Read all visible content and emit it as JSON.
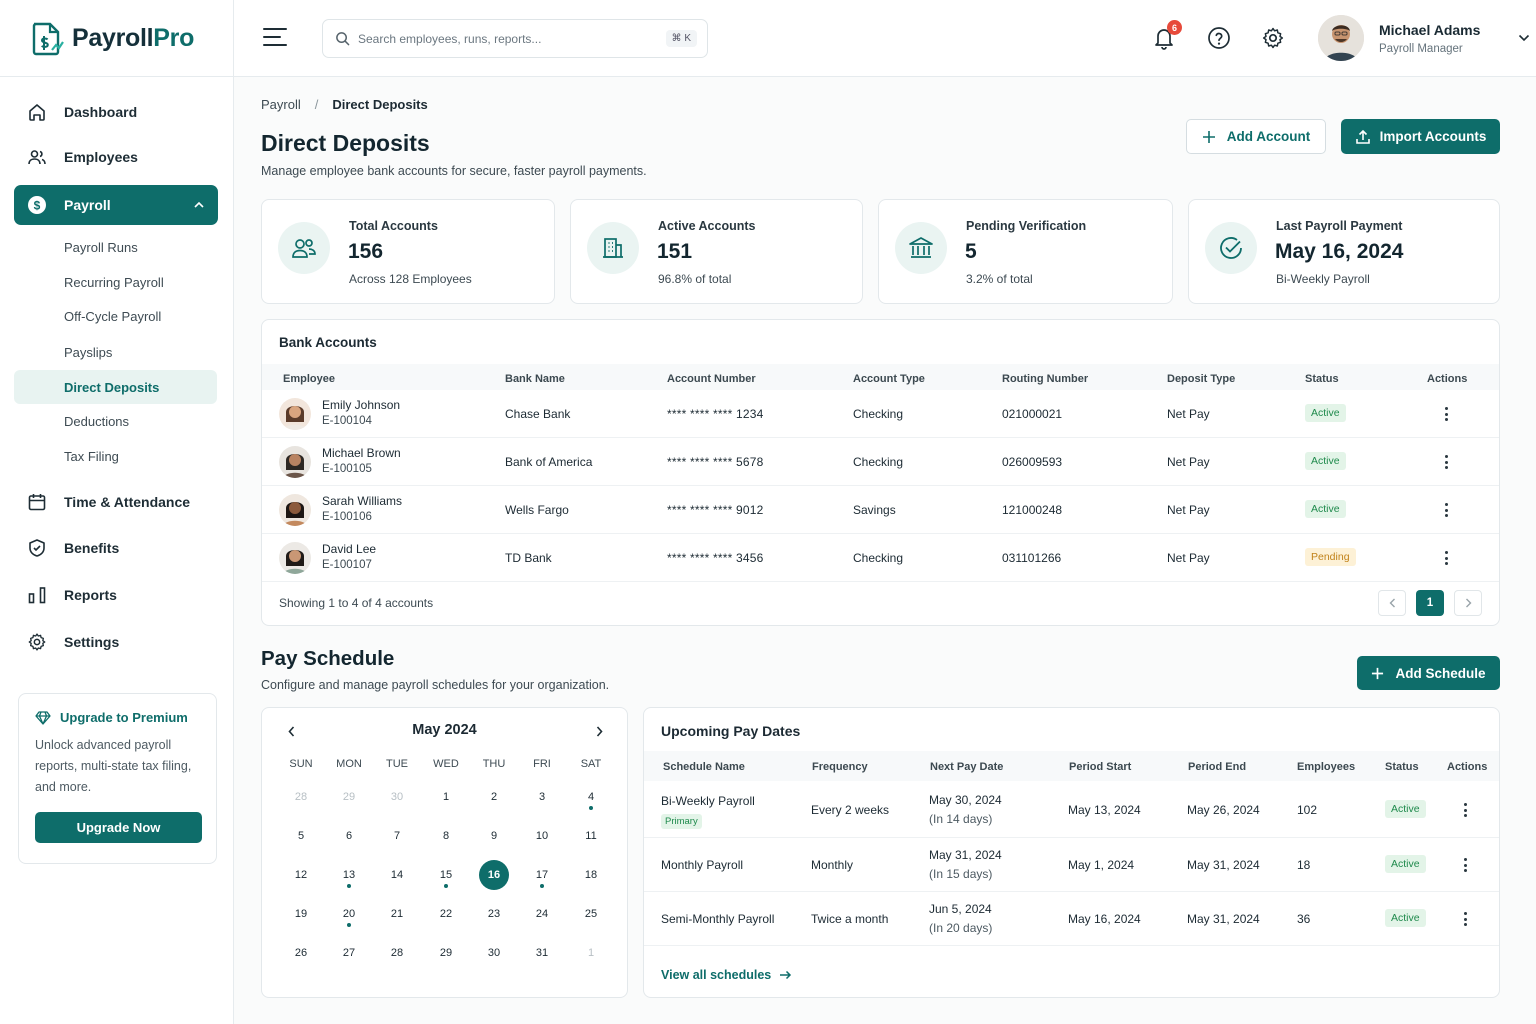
{
  "app": {
    "brand_main": "Payroll",
    "brand_accent": "Pro"
  },
  "search": {
    "placeholder": "Search employees, runs, reports...",
    "shortcut": "⌘ K"
  },
  "notifications": {
    "count": "6"
  },
  "user": {
    "name": "Michael Adams",
    "role": "Payroll Manager"
  },
  "sidebar": {
    "items": [
      {
        "label": "Dashboard",
        "icon": "home-icon"
      },
      {
        "label": "Employees",
        "icon": "users-icon"
      },
      {
        "label": "Payroll",
        "icon": "dollar-icon"
      },
      {
        "label": "Time & Attendance",
        "icon": "calendar-icon"
      },
      {
        "label": "Benefits",
        "icon": "shield-icon"
      },
      {
        "label": "Reports",
        "icon": "bar-chart-icon"
      },
      {
        "label": "Settings",
        "icon": "gear-icon"
      }
    ],
    "payroll_sub": [
      "Payroll Runs",
      "Recurring Payroll",
      "Off-Cycle Payroll",
      "Payslips",
      "Direct Deposits",
      "Deductions",
      "Tax Filing"
    ],
    "promo": {
      "title": "Upgrade to Premium",
      "text": "Unlock advanced payroll reports, multi-state tax filing, and more.",
      "button": "Upgrade Now"
    }
  },
  "breadcrumb": {
    "parent": "Payroll",
    "separator": "/",
    "current": "Direct Deposits"
  },
  "page": {
    "title": "Direct Deposits",
    "subtitle": "Manage employee bank accounts for secure, faster payroll payments.",
    "add_account": "Add Account",
    "import_accounts": "Import Accounts"
  },
  "stats": [
    {
      "label": "Total Accounts",
      "value": "156",
      "sub": "Across 128 Employees",
      "icon": "users-icon"
    },
    {
      "label": "Active Accounts",
      "value": "151",
      "sub": "96.8% of total",
      "icon": "building-icon"
    },
    {
      "label": "Pending Verification",
      "value": "5",
      "sub": "3.2% of total",
      "icon": "bank-icon"
    },
    {
      "label": "Last Payroll Payment",
      "value": "May 16, 2024",
      "sub": "Bi-Weekly Payroll",
      "icon": "check-circle-icon"
    }
  ],
  "bank_accounts": {
    "title": "Bank Accounts",
    "columns": [
      "Employee",
      "Bank Name",
      "Account Number",
      "Account Type",
      "Routing Number",
      "Deposit Type",
      "Status",
      "Actions"
    ],
    "rows": [
      {
        "name": "Emily Johnson",
        "id": "E-100104",
        "bank": "Chase Bank",
        "account": "**** **** **** 1234",
        "type": "Checking",
        "routing": "021000021",
        "deposit": "Net Pay",
        "status": "Active"
      },
      {
        "name": "Michael Brown",
        "id": "E-100105",
        "bank": "Bank of America",
        "account": "**** **** **** 5678",
        "type": "Checking",
        "routing": "026009593",
        "deposit": "Net Pay",
        "status": "Active"
      },
      {
        "name": "Sarah Williams",
        "id": "E-100106",
        "bank": "Wells Fargo",
        "account": "**** **** **** 9012",
        "type": "Savings",
        "routing": "121000248",
        "deposit": "Net Pay",
        "status": "Active"
      },
      {
        "name": "David Lee",
        "id": "E-100107",
        "bank": "TD Bank",
        "account": "**** **** **** 3456",
        "type": "Checking",
        "routing": "031101266",
        "deposit": "Net Pay",
        "status": "Pending"
      }
    ],
    "footer": "Showing 1 to 4 of 4 accounts",
    "current_page": "1"
  },
  "schedule": {
    "title": "Pay Schedule",
    "subtitle": "Configure and manage payroll schedules for your organization.",
    "add_button": "Add Schedule"
  },
  "calendar": {
    "month": "May 2024",
    "weekdays": [
      "SUN",
      "MON",
      "TUE",
      "WED",
      "THU",
      "FRI",
      "SAT"
    ],
    "weeks": [
      [
        "28",
        "29",
        "30",
        "1",
        "2",
        "3",
        "4"
      ],
      [
        "5",
        "6",
        "7",
        "8",
        "9",
        "10",
        "11"
      ],
      [
        "12",
        "13",
        "14",
        "15",
        "16",
        "17",
        "18"
      ],
      [
        "19",
        "20",
        "21",
        "22",
        "23",
        "24",
        "25"
      ],
      [
        "26",
        "27",
        "28",
        "29",
        "30",
        "31",
        "1"
      ]
    ],
    "selected": "16",
    "marked_dates": [
      "4",
      "13",
      "15",
      "17",
      "20"
    ]
  },
  "upcoming": {
    "title": "Upcoming Pay Dates",
    "columns": [
      "Schedule Name",
      "Frequency",
      "Next Pay Date",
      "Period Start",
      "Period End",
      "Employees",
      "Status",
      "Actions"
    ],
    "rows": [
      {
        "name": "Bi-Weekly Payroll",
        "tag": "Primary",
        "frequency": "Every 2 weeks",
        "next": "May 30, 2024",
        "in": "(In 14 days)",
        "start": "May 13, 2024",
        "end": "May 26, 2024",
        "employees": "102",
        "status": "Active"
      },
      {
        "name": "Monthly Payroll",
        "tag": "",
        "frequency": "Monthly",
        "next": "May 31, 2024",
        "in": "(In 15 days)",
        "start": "May 1, 2024",
        "end": "May 31, 2024",
        "employees": "18",
        "status": "Active"
      },
      {
        "name": "Semi-Monthly Payroll",
        "tag": "",
        "frequency": "Twice a month",
        "next": "Jun 5, 2024",
        "in": "(In 20 days)",
        "start": "May 16, 2024",
        "end": "May 31, 2024",
        "employees": "36",
        "status": "Active"
      }
    ],
    "view_all": "View all schedules"
  },
  "colors": {
    "primary": "#0e6d6a",
    "active_bg": "#e3f4e8",
    "pending_bg": "#fdf1d6",
    "danger": "#e74a3b"
  }
}
